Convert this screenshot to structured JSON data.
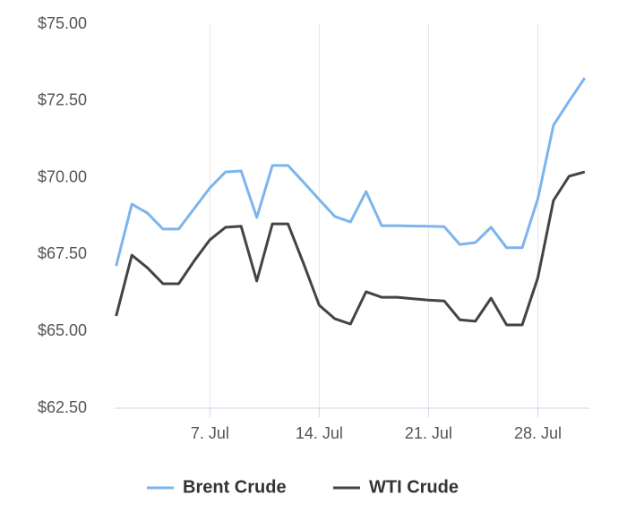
{
  "chart_data": {
    "type": "line",
    "x": [
      1,
      2,
      3,
      4,
      5,
      6,
      7,
      8,
      9,
      10,
      11,
      12,
      13,
      14,
      15,
      16,
      17,
      18,
      19,
      20,
      21,
      22,
      23,
      24,
      25,
      26,
      27,
      28,
      29,
      30,
      31
    ],
    "series": [
      {
        "name": "Brent Crude",
        "color": "#7cb5ec",
        "values": [
          67.13,
          69.14,
          68.85,
          68.33,
          68.33,
          69.0,
          69.67,
          70.19,
          70.22,
          68.71,
          70.4,
          70.4,
          69.85,
          69.29,
          68.74,
          68.56,
          69.55,
          68.44,
          68.44,
          68.43,
          68.42,
          68.41,
          67.83,
          67.89,
          68.39,
          67.72,
          67.72,
          69.32,
          71.71,
          72.49,
          73.25
        ]
      },
      {
        "name": "WTI Crude",
        "color": "#434348",
        "values": [
          65.5,
          67.48,
          67.07,
          66.55,
          66.55,
          67.3,
          67.98,
          68.39,
          68.42,
          66.64,
          68.5,
          68.5,
          67.2,
          65.85,
          65.41,
          65.24,
          66.29,
          66.11,
          66.11,
          66.06,
          66.02,
          65.99,
          65.38,
          65.33,
          66.08,
          65.21,
          65.21,
          66.75,
          69.26,
          70.05,
          70.19
        ]
      }
    ],
    "xlim": [
      0.9,
      31.3
    ],
    "xticks": [
      {
        "value": 7,
        "label": "7. Jul"
      },
      {
        "value": 14,
        "label": "14. Jul"
      },
      {
        "value": 21,
        "label": "21. Jul"
      },
      {
        "value": 28,
        "label": "28. Jul"
      }
    ],
    "ylim": [
      62.5,
      75
    ],
    "yticks": [
      {
        "value": 62.5,
        "label": "$62.50"
      },
      {
        "value": 65,
        "label": "$65.00"
      },
      {
        "value": 67.5,
        "label": "$67.50"
      },
      {
        "value": 70,
        "label": "$70.00"
      },
      {
        "value": 72.5,
        "label": "$72.50"
      },
      {
        "value": 75,
        "label": "$75.00"
      }
    ],
    "grid": "x",
    "legend": "bottom"
  }
}
